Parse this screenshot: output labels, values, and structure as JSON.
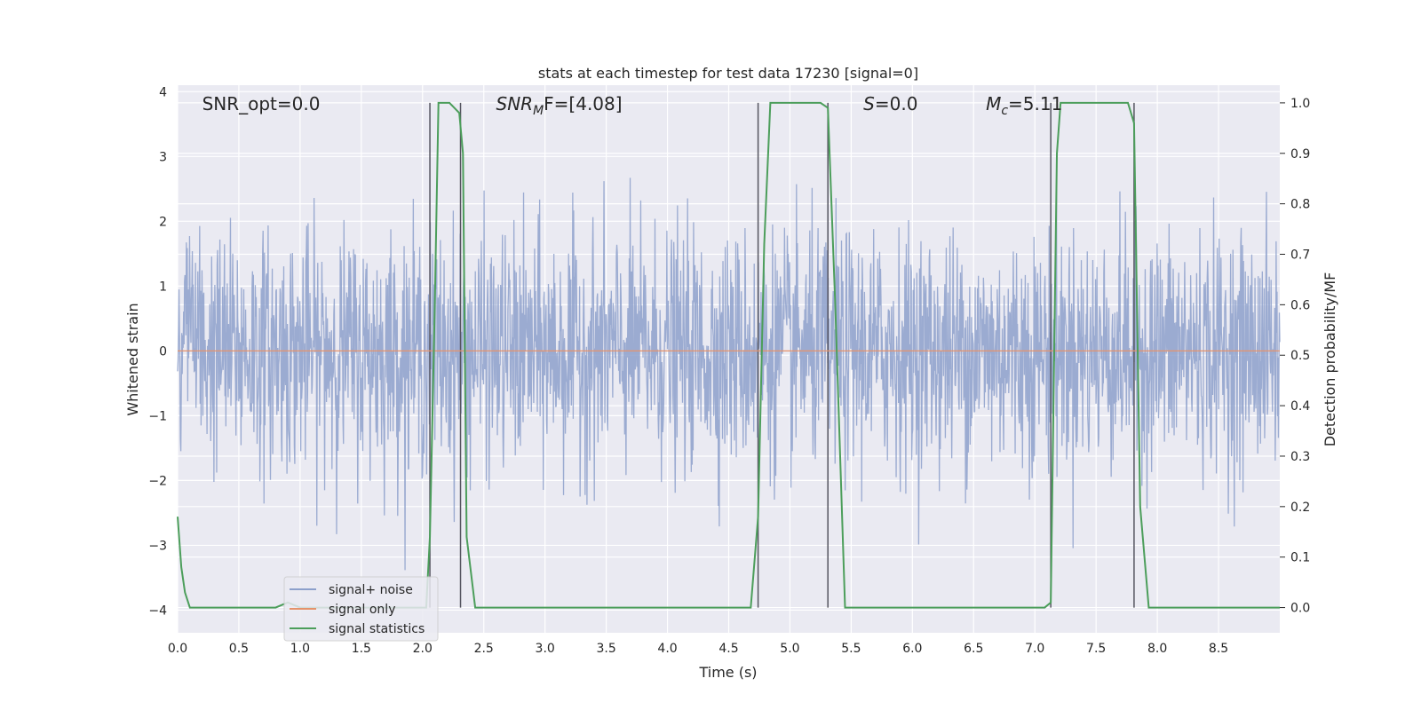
{
  "chart_data": {
    "type": "line",
    "title": "stats at each timestep for test data 17230 [signal=0]",
    "xlabel": "Time (s)",
    "ylabel": "Whitened strain",
    "ylabel_right": "Detection probability/MF",
    "xlim": [
      0,
      9.0
    ],
    "ylim": [
      -4.35,
      4.1
    ],
    "ylim_right": [
      -0.05,
      1.035
    ],
    "x_ticks": [
      0.0,
      0.5,
      1.0,
      1.5,
      2.0,
      2.5,
      3.0,
      3.5,
      4.0,
      4.5,
      5.0,
      5.5,
      6.0,
      6.5,
      7.0,
      7.5,
      8.0,
      8.5
    ],
    "x_tick_labels": [
      "0.0",
      "0.5",
      "1.0",
      "1.5",
      "2.0",
      "2.5",
      "3.0",
      "3.5",
      "4.0",
      "4.5",
      "5.0",
      "5.5",
      "6.0",
      "6.5",
      "7.0",
      "7.5",
      "8.0",
      "8.5"
    ],
    "y_ticks": [
      4,
      3,
      2,
      1,
      0,
      -1,
      -2,
      -3,
      -4
    ],
    "y_tick_labels": [
      "4",
      "3",
      "2",
      "1",
      "0",
      "−1",
      "−2",
      "−3",
      "−4"
    ],
    "y_right_ticks": [
      1.0,
      0.9,
      0.8,
      0.7,
      0.6,
      0.5,
      0.4,
      0.3,
      0.2,
      0.1,
      0.0
    ],
    "y_right_tick_labels": [
      "1.0",
      "0.9",
      "0.8",
      "0.7",
      "0.6",
      "0.5",
      "0.4",
      "0.3",
      "0.2",
      "0.1",
      "0.0"
    ],
    "grid": true,
    "legend_position": "bottom-left",
    "annotations": [
      {
        "name": "snr-opt",
        "text_main": "SNR_opt=0.0",
        "x": 0.2
      },
      {
        "name": "snr-mf",
        "text_main": "SNR",
        "text_sub": "M",
        "text_rest": "F=[4.08]",
        "italic": true,
        "x": 2.6
      },
      {
        "name": "s-stat",
        "text_main": "S",
        "text_rest": "=0.0",
        "italic": true,
        "x": 5.6
      },
      {
        "name": "mc",
        "text_main": "M",
        "text_sub": "c",
        "text_rest": "=5.11",
        "italic": true,
        "x": 6.6
      }
    ],
    "vertical_lines": [
      2.06,
      2.31,
      4.74,
      5.31,
      7.13,
      7.81
    ],
    "vertical_line_range": [
      0.0,
      1.0
    ],
    "series": [
      {
        "name": "signal+ noise",
        "color": "#8da0cb",
        "noise_sigma": 0.9,
        "samples": 2400,
        "axis": "left"
      },
      {
        "name": "signal only",
        "color": "#e5926b",
        "x": [
          0,
          9.0
        ],
        "y": [
          0,
          0
        ],
        "axis": "left"
      },
      {
        "name": "signal statistics",
        "color": "#4c9e5b",
        "axis": "right",
        "x": [
          0.0,
          0.03,
          0.06,
          0.1,
          0.15,
          0.8,
          0.9,
          1.0,
          1.5,
          2.0,
          2.03,
          2.06,
          2.1,
          2.13,
          2.22,
          2.3,
          2.33,
          2.36,
          2.43,
          4.1,
          4.68,
          4.74,
          4.79,
          4.84,
          5.25,
          5.31,
          5.37,
          5.45,
          7.08,
          7.13,
          7.18,
          7.21,
          7.76,
          7.81,
          7.86,
          7.93,
          9.0
        ],
        "y": [
          0.18,
          0.08,
          0.03,
          0.0,
          0.0,
          0.0,
          0.01,
          0.0,
          0.0,
          0.0,
          0.0,
          0.14,
          0.6,
          1.0,
          1.0,
          0.98,
          0.9,
          0.14,
          0.0,
          0.0,
          0.0,
          0.18,
          0.72,
          1.0,
          1.0,
          0.99,
          0.6,
          0.0,
          0.0,
          0.01,
          0.9,
          1.0,
          1.0,
          0.96,
          0.2,
          0.0,
          0.0
        ]
      }
    ]
  }
}
